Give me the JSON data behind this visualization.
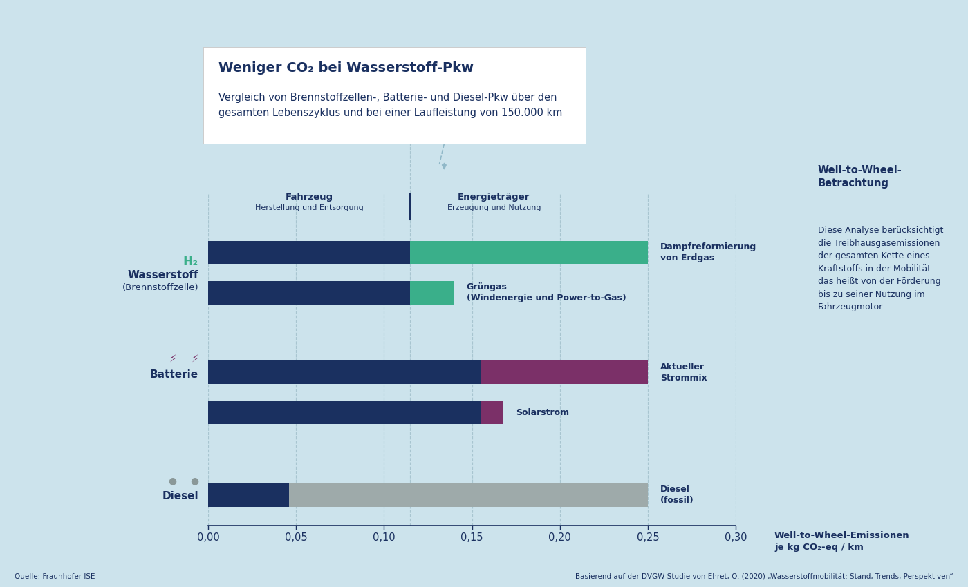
{
  "background_color": "#cce3ec",
  "dark_navy": "#1a3060",
  "teal_color": "#3aaf8a",
  "purple_color": "#7b3068",
  "gray_color": "#9eaaaa",
  "bars": [
    {
      "y": 6.3,
      "v": 0.115,
      "e": 0.135,
      "ec": "#3aaf8a",
      "sublabel": "Dampfreformierung\nvon Erdgas"
    },
    {
      "y": 5.45,
      "v": 0.115,
      "e": 0.025,
      "ec": "#3aaf8a",
      "sublabel": "Grüngas\n(Windenergie und Power-to-Gas)"
    },
    {
      "y": 3.75,
      "v": 0.155,
      "e": 0.095,
      "ec": "#7b3068",
      "sublabel": "Aktueller\nStrommix"
    },
    {
      "y": 2.9,
      "v": 0.155,
      "e": 0.013,
      "ec": "#7b3068",
      "sublabel": "Solarstrom"
    },
    {
      "y": 1.15,
      "v": 0.046,
      "e": 0.204,
      "ec": "#9eaaaa",
      "sublabel": "Diesel\n(fossil)"
    }
  ],
  "bar_height": 0.5,
  "xlim": [
    0.0,
    0.3
  ],
  "xticks": [
    0.0,
    0.05,
    0.1,
    0.15,
    0.2,
    0.25,
    0.3
  ],
  "xtick_labels": [
    "0,00",
    "0,05",
    "0,10",
    "0,15",
    "0,20",
    "0,25",
    "0,30"
  ],
  "fahrzeug_split": 0.115,
  "energy_split": 0.155,
  "source_left": "Quelle: Fraunhofer ISE",
  "source_right": "Basierend auf der DVGW-Studie von Ehret, O. (2020) „Wasserstoffmobilität: Stand, Trends, Perspektiven“",
  "right_title": "Well-to-Wheel-\nBetrachtung",
  "right_body": "Diese Analyse berücksichtigt\ndie Treibhausgasemissionen\nder gesamten Kette eines\nKraftstoffs in der Mobilität –\ndas heißt von der Förderung\nbis zu seiner Nutzung im\nFahrzeugmotor."
}
